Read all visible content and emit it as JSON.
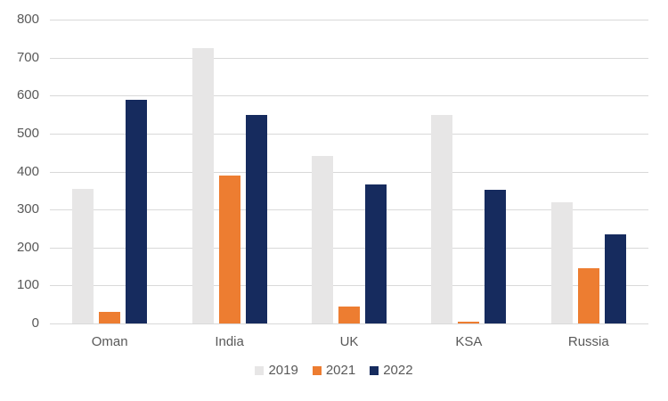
{
  "chart_data": {
    "type": "bar",
    "title": "",
    "xlabel": "",
    "ylabel": "",
    "categories": [
      "Oman",
      "India",
      "UK",
      "KSA",
      "Russia"
    ],
    "series": [
      {
        "name": "2019",
        "color": "#E7E6E6",
        "values": [
          355,
          725,
          440,
          550,
          320
        ]
      },
      {
        "name": "2021",
        "color": "#ED7D31",
        "values": [
          30,
          390,
          45,
          5,
          145
        ]
      },
      {
        "name": "2022",
        "color": "#162B5E",
        "values": [
          590,
          550,
          365,
          352,
          235
        ]
      }
    ],
    "ylim": [
      0,
      800
    ],
    "yticks": [
      0,
      100,
      200,
      300,
      400,
      500,
      600,
      700,
      800
    ],
    "grid": true,
    "legend_position": "bottom",
    "text_color": "#595959",
    "grid_color": "#D9D9D9",
    "background_color": "#FFFFFF"
  }
}
